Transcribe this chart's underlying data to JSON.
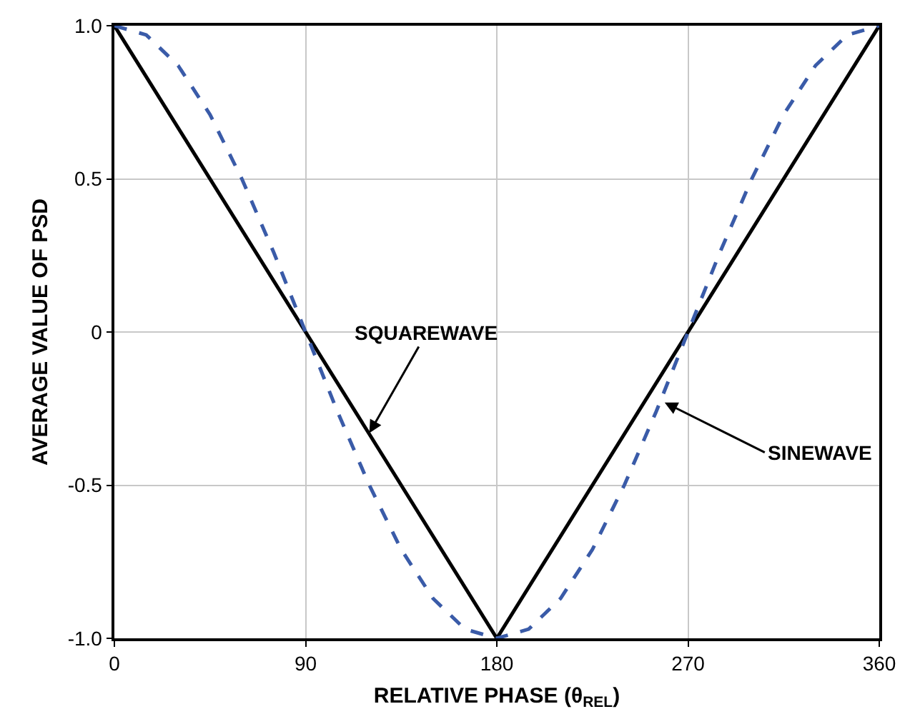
{
  "chart_data": {
    "type": "line",
    "xlabel": "RELATIVE PHASE (θ$_{REL}$)",
    "ylabel": "AVERAGE VALUE OF PSD",
    "xlim": [
      0,
      360
    ],
    "xticks": [
      0,
      90,
      180,
      270,
      360
    ],
    "ylim": [
      -1,
      1
    ],
    "yticks": [
      {
        "value": 1,
        "label": "1.0"
      },
      0.5,
      0,
      -0.5,
      {
        "value": -1,
        "label": "-1.0"
      }
    ],
    "grid": true,
    "marker": "none",
    "series": [
      {
        "color": "#000000",
        "line_style": "solid",
        "x": [
          0,
          180,
          360
        ],
        "values": [
          1,
          -1,
          1
        ]
      },
      {
        "color": "#3a5ba8",
        "line_style": "dashed",
        "x": [
          0,
          15,
          30,
          45,
          60,
          75,
          90,
          105,
          120,
          135,
          150,
          165,
          180,
          195,
          210,
          225,
          240,
          255,
          270,
          285,
          300,
          315,
          330,
          345,
          360
        ],
        "values": [
          1,
          0.97,
          0.87,
          0.71,
          0.5,
          0.26,
          0,
          -0.26,
          -0.5,
          -0.71,
          -0.87,
          -0.97,
          -1,
          -0.97,
          -0.87,
          -0.71,
          -0.5,
          -0.26,
          0,
          0.26,
          0.5,
          0.71,
          0.87,
          0.97,
          1
        ]
      }
    ],
    "annotations": [
      {
        "text": "SQUAREWAVE",
        "x": 120,
        "y": -0.33
      },
      {
        "text": "SINEWAVE",
        "x": 259,
        "y": -0.23
      }
    ]
  }
}
